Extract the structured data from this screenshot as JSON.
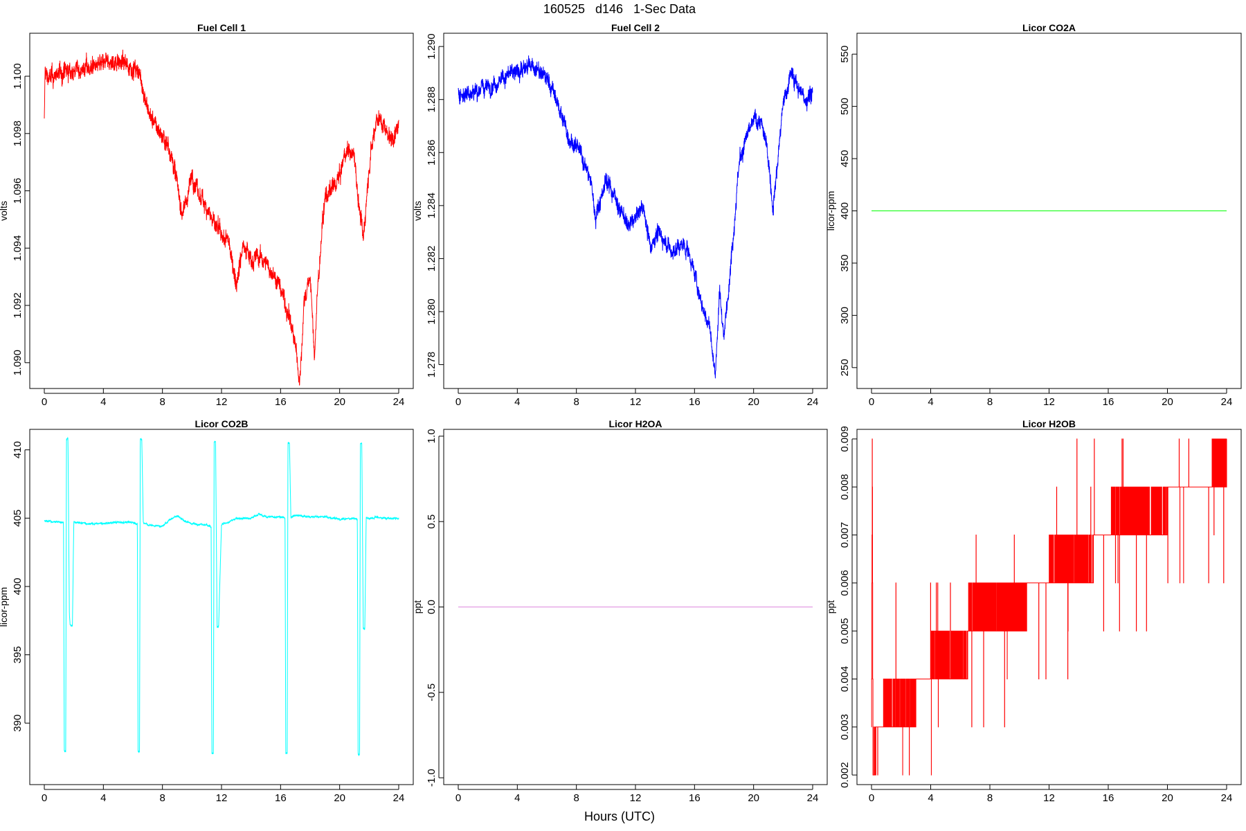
{
  "figure": {
    "suptitle": "160525   d146   1-Sec Data",
    "xlabel": "Hours (UTC)"
  },
  "chart_data": [
    {
      "type": "line",
      "title": "Fuel Cell 1",
      "ylabel": "volts",
      "color": "#ff0000",
      "xlim": [
        0,
        24
      ],
      "ylim": [
        1.0891,
        1.1015
      ],
      "xticks": [
        0,
        4,
        8,
        12,
        16,
        20,
        24
      ],
      "yticks": [
        1.09,
        1.092,
        1.094,
        1.096,
        1.098,
        1.1
      ],
      "ytick_labels": [
        "1.090",
        "1.092",
        "1.094",
        "1.096",
        "1.098",
        "1.100"
      ],
      "noise": 0.00035,
      "x": [
        0,
        0.05,
        0.3,
        1,
        2,
        3,
        4,
        4.8,
        5,
        5.5,
        6,
        6.5,
        7,
        7.5,
        8,
        8.5,
        9,
        9.3,
        9.7,
        10,
        10.5,
        11,
        11.5,
        12,
        12.5,
        13,
        13.5,
        14,
        14.5,
        15,
        15.5,
        16,
        16.5,
        17,
        17.3,
        17.6,
        18,
        18.3,
        18.5,
        19,
        19.5,
        20,
        20.5,
        21,
        21.3,
        21.6,
        22,
        22.5,
        23,
        23.5,
        24
      ],
      "y": [
        1.0983,
        1.1002,
        1.0999,
        1.1001,
        1.1002,
        1.1003,
        1.1004,
        1.1005,
        1.1006,
        1.1004,
        1.1003,
        1.1,
        1.0988,
        1.0983,
        1.0979,
        1.0975,
        1.0963,
        1.0952,
        1.0958,
        1.0966,
        1.0958,
        1.0955,
        1.0948,
        1.0944,
        1.0942,
        1.0928,
        1.0942,
        1.0936,
        1.0937,
        1.0935,
        1.0931,
        1.0926,
        1.0918,
        1.0906,
        1.0893,
        1.0922,
        1.093,
        1.0902,
        1.0925,
        1.0958,
        1.096,
        1.0965,
        1.0975,
        1.0972,
        1.0955,
        1.0943,
        1.097,
        1.0986,
        1.0983,
        1.0978,
        1.0982
      ]
    },
    {
      "type": "line",
      "title": "Fuel Cell 2",
      "ylabel": "volts",
      "color": "#0000ff",
      "xlim": [
        0,
        24
      ],
      "ylim": [
        1.2771,
        1.2905
      ],
      "xticks": [
        0,
        4,
        8,
        12,
        16,
        20,
        24
      ],
      "yticks": [
        1.278,
        1.28,
        1.282,
        1.284,
        1.286,
        1.288,
        1.29
      ],
      "ytick_labels": [
        "1.278",
        "1.280",
        "1.282",
        "1.284",
        "1.286",
        "1.288",
        "1.290"
      ],
      "noise": 0.00035,
      "x": [
        0,
        1,
        2,
        3,
        4,
        5,
        5.5,
        6,
        6.5,
        7,
        7.5,
        8,
        8.5,
        9,
        9.3,
        9.6,
        10,
        10.5,
        11,
        11.5,
        12,
        12.5,
        13,
        13.5,
        14,
        14.5,
        15,
        15.5,
        16,
        16.5,
        17,
        17.4,
        17.7,
        18,
        18.3,
        18.6,
        19,
        19.5,
        20,
        20.5,
        21,
        21.3,
        21.6,
        22,
        22.5,
        23,
        23.5,
        24
      ],
      "y": [
        1.2882,
        1.2883,
        1.2885,
        1.2888,
        1.2891,
        1.2893,
        1.289,
        1.2888,
        1.2882,
        1.2874,
        1.2866,
        1.2862,
        1.2857,
        1.2848,
        1.2836,
        1.2842,
        1.285,
        1.2845,
        1.2838,
        1.2832,
        1.2835,
        1.284,
        1.2825,
        1.283,
        1.2827,
        1.2822,
        1.2825,
        1.2824,
        1.2815,
        1.2802,
        1.2795,
        1.2776,
        1.2808,
        1.279,
        1.281,
        1.2828,
        1.2855,
        1.2865,
        1.2872,
        1.2872,
        1.2858,
        1.284,
        1.2855,
        1.2878,
        1.289,
        1.2885,
        1.288,
        1.2884
      ]
    },
    {
      "type": "line",
      "title": "Licor CO2A",
      "ylabel": "licor-ppm",
      "color": "#00ff00",
      "xlim": [
        0,
        24
      ],
      "ylim": [
        230,
        570
      ],
      "xticks": [
        0,
        4,
        8,
        12,
        16,
        20,
        24
      ],
      "yticks": [
        250,
        300,
        350,
        400,
        450,
        500,
        550
      ],
      "ytick_labels": [
        "250",
        "300",
        "350",
        "400",
        "450",
        "500",
        "550"
      ],
      "noise": 0,
      "x": [
        0,
        24
      ],
      "y": [
        400,
        400
      ]
    },
    {
      "type": "line",
      "title": "Licor CO2B",
      "ylabel": "licor-ppm",
      "color": "#00ffff",
      "xlim": [
        0,
        24
      ],
      "ylim": [
        385.5,
        411.5
      ],
      "xticks": [
        0,
        4,
        8,
        12,
        16,
        20,
        24
      ],
      "yticks": [
        390,
        395,
        400,
        405,
        410
      ],
      "ytick_labels": [
        "390",
        "395",
        "400",
        "405",
        "410"
      ],
      "noise": 0.08,
      "x": [
        0,
        1.3,
        1.35,
        1.45,
        1.5,
        1.6,
        1.7,
        1.75,
        1.9,
        2.0,
        3,
        4,
        5,
        6,
        6.3,
        6.35,
        6.45,
        6.5,
        6.6,
        6.7,
        7,
        8,
        8.5,
        9,
        9.5,
        10,
        11,
        11.3,
        11.35,
        11.45,
        11.5,
        11.6,
        11.7,
        11.8,
        12,
        12.5,
        13,
        14,
        14.5,
        15,
        16,
        16.3,
        16.35,
        16.45,
        16.5,
        16.6,
        16.7,
        17,
        18,
        19,
        20,
        21,
        21.2,
        21.25,
        21.35,
        21.4,
        21.5,
        21.6,
        21.7,
        21.8,
        22,
        22.5,
        23,
        24
      ],
      "y": [
        404.8,
        404.7,
        388.0,
        388.0,
        410.8,
        410.9,
        398.0,
        397.2,
        397.1,
        404.7,
        404.6,
        404.6,
        404.7,
        404.7,
        404.6,
        387.9,
        387.9,
        410.8,
        410.8,
        404.7,
        404.5,
        404.4,
        404.9,
        405.2,
        404.8,
        404.6,
        404.5,
        404.4,
        387.8,
        387.8,
        410.6,
        410.6,
        397.0,
        397.0,
        404.5,
        404.7,
        405.0,
        405.0,
        405.3,
        405.1,
        405.1,
        405.0,
        387.8,
        387.8,
        410.5,
        410.5,
        405.1,
        405.2,
        405.1,
        405.1,
        404.9,
        405.0,
        404.9,
        387.7,
        387.7,
        410.5,
        410.5,
        396.9,
        396.9,
        405.0,
        405.0,
        405.1,
        405.0,
        405.0
      ]
    },
    {
      "type": "line",
      "title": "Licor H2OA",
      "ylabel": "ppt",
      "color": "#dd88dd",
      "xlim": [
        0,
        24
      ],
      "ylim": [
        -1.04,
        1.04
      ],
      "xticks": [
        0,
        4,
        8,
        12,
        16,
        20,
        24
      ],
      "yticks": [
        -1.0,
        -0.5,
        0.0,
        0.5,
        1.0
      ],
      "ytick_labels": [
        "-1.0",
        "-0.5",
        "0.0",
        "0.5",
        "1.0"
      ],
      "noise": 0,
      "x": [
        0,
        24
      ],
      "y": [
        0,
        0
      ]
    },
    {
      "type": "line",
      "title": "Licor H2OB",
      "ylabel": "ppt",
      "color": "#ff0000",
      "xlim": [
        0,
        24
      ],
      "ylim": [
        0.0018,
        0.0092
      ],
      "xticks": [
        0,
        4,
        8,
        12,
        16,
        20,
        24
      ],
      "yticks": [
        0.002,
        0.003,
        0.004,
        0.005,
        0.006,
        0.007,
        0.008,
        0.009
      ],
      "ytick_labels": [
        "0.002",
        "0.003",
        "0.004",
        "0.005",
        "0.006",
        "0.007",
        "0.008",
        "0.009"
      ],
      "noise": 0,
      "x": [
        0,
        0.05,
        0.1,
        0.3,
        0.8,
        2.5,
        3.0,
        4.0,
        4.5,
        6.5,
        7.0,
        10.0,
        10.5,
        12.0,
        12.5,
        14.5,
        15.0,
        16.2,
        16.5,
        19.5,
        20.0,
        23.0,
        23.5,
        24
      ],
      "y": [
        0.003,
        0.009,
        0.002,
        0.003,
        0.003,
        0.0035,
        0.004,
        0.004,
        0.0045,
        0.005,
        0.0055,
        0.0055,
        0.006,
        0.006,
        0.0065,
        0.0065,
        0.007,
        0.007,
        0.0075,
        0.0075,
        0.008,
        0.008,
        0.0085,
        0.0085
      ]
    }
  ]
}
